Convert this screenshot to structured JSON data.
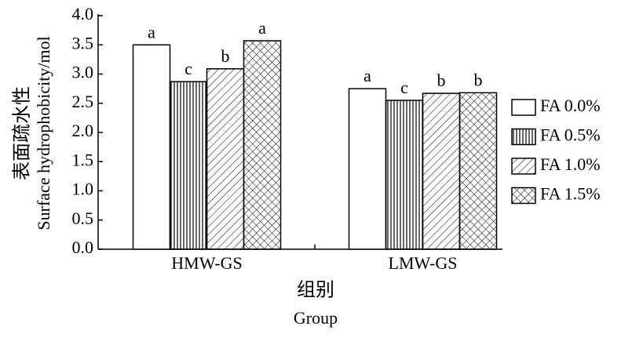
{
  "chart_data": {
    "type": "bar",
    "ylabel": [
      "表面疏水性",
      "Surface hydrophobicity/mol"
    ],
    "xlabel": [
      "组别",
      "Group"
    ],
    "categories": [
      "HMW-GS",
      "LMW-GS"
    ],
    "series": [
      {
        "name": "FA 0.0%",
        "color": "#000000",
        "pattern": "none",
        "values": [
          3.5,
          2.75
        ],
        "significance": [
          "a",
          "a"
        ]
      },
      {
        "name": "FA 0.5%",
        "color": "#000000",
        "pattern": "vertical",
        "values": [
          2.87,
          2.55
        ],
        "significance": [
          "c",
          "c"
        ]
      },
      {
        "name": "FA 1.0%",
        "color": "#000000",
        "pattern": "diagonal",
        "values": [
          3.09,
          2.67
        ],
        "significance": [
          "b",
          "b"
        ]
      },
      {
        "name": "FA 1.5%",
        "color": "#000000",
        "pattern": "crosshatch",
        "values": [
          3.57,
          2.68
        ],
        "significance": [
          "a",
          "b"
        ]
      }
    ],
    "ylim": [
      0,
      4
    ],
    "yticks": [
      {
        "value": 0,
        "label": "0.0"
      },
      0.5,
      {
        "value": 1,
        "label": "1.0"
      },
      1.5,
      {
        "value": 2,
        "label": "2.0"
      },
      2.5,
      {
        "value": 3,
        "label": "3.0"
      },
      3.5,
      {
        "value": 4,
        "label": "4.0"
      }
    ],
    "grid": false,
    "legend": "right"
  }
}
